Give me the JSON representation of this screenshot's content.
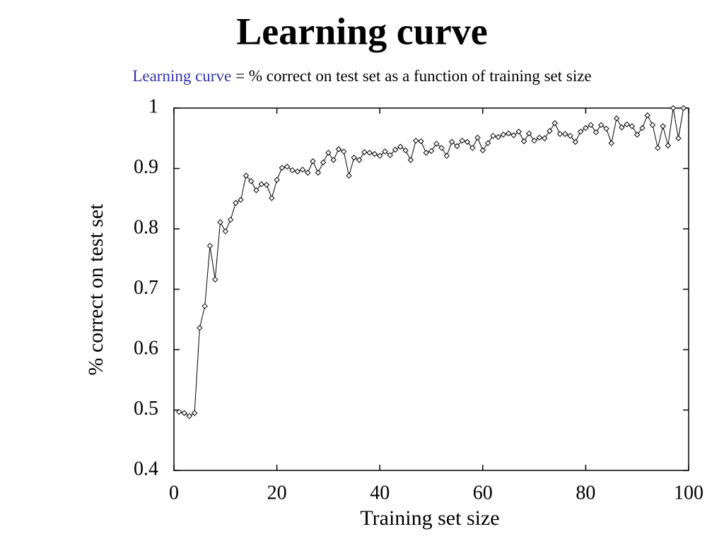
{
  "chart_data": {
    "type": "line",
    "title": "Learning curve",
    "subtitle": {
      "term": "Learning curve",
      "definition": "= % correct on test set as a function of training set size"
    },
    "x_label": "Training set size",
    "y_label": "% correct on test set",
    "xlim": [
      0,
      100
    ],
    "ylim": [
      0.4,
      1
    ],
    "xticks": [
      0,
      20,
      40,
      60,
      80,
      100
    ],
    "yticks": [
      0.4,
      0.5,
      0.6,
      0.7,
      0.8,
      0.9,
      1
    ],
    "grid": false,
    "series": [
      {
        "color": "#000000",
        "x": [
          1,
          2,
          3,
          4,
          5,
          6,
          7,
          8,
          9,
          10,
          11,
          12,
          13,
          14,
          15,
          16,
          17,
          18,
          19,
          20,
          21,
          22,
          23,
          24,
          25,
          26,
          27,
          28,
          29,
          30,
          31,
          32,
          33,
          34,
          35,
          36,
          37,
          38,
          39,
          40,
          41,
          42,
          43,
          44,
          45,
          46,
          47,
          48,
          49,
          50,
          51,
          52,
          53,
          54,
          55,
          56,
          57,
          58,
          59,
          60,
          61,
          62,
          63,
          64,
          65,
          66,
          67,
          68,
          69,
          70,
          71,
          72,
          73,
          74,
          75,
          76,
          77,
          78,
          79,
          80,
          81,
          82,
          83,
          84,
          85,
          86,
          87,
          88,
          89,
          90,
          91,
          92,
          93,
          94,
          95,
          96,
          97,
          98,
          99
        ],
        "values": [
          0.497,
          0.495,
          0.49,
          0.495,
          0.636,
          0.672,
          0.772,
          0.716,
          0.811,
          0.796,
          0.815,
          0.843,
          0.848,
          0.888,
          0.879,
          0.864,
          0.874,
          0.873,
          0.851,
          0.881,
          0.901,
          0.903,
          0.897,
          0.895,
          0.898,
          0.893,
          0.912,
          0.893,
          0.91,
          0.926,
          0.914,
          0.932,
          0.928,
          0.888,
          0.918,
          0.914,
          0.927,
          0.926,
          0.924,
          0.921,
          0.928,
          0.922,
          0.931,
          0.936,
          0.93,
          0.914,
          0.946,
          0.945,
          0.926,
          0.929,
          0.941,
          0.934,
          0.921,
          0.944,
          0.937,
          0.946,
          0.944,
          0.934,
          0.951,
          0.93,
          0.942,
          0.954,
          0.952,
          0.956,
          0.958,
          0.955,
          0.961,
          0.945,
          0.958,
          0.946,
          0.951,
          0.95,
          0.962,
          0.975,
          0.957,
          0.957,
          0.954,
          0.944,
          0.961,
          0.967,
          0.972,
          0.96,
          0.972,
          0.966,
          0.942,
          0.983,
          0.968,
          0.973,
          0.97,
          0.956,
          0.967,
          0.988,
          0.972,
          0.934,
          0.97,
          0.938,
          1.0,
          0.95,
          1.0
        ]
      }
    ]
  }
}
